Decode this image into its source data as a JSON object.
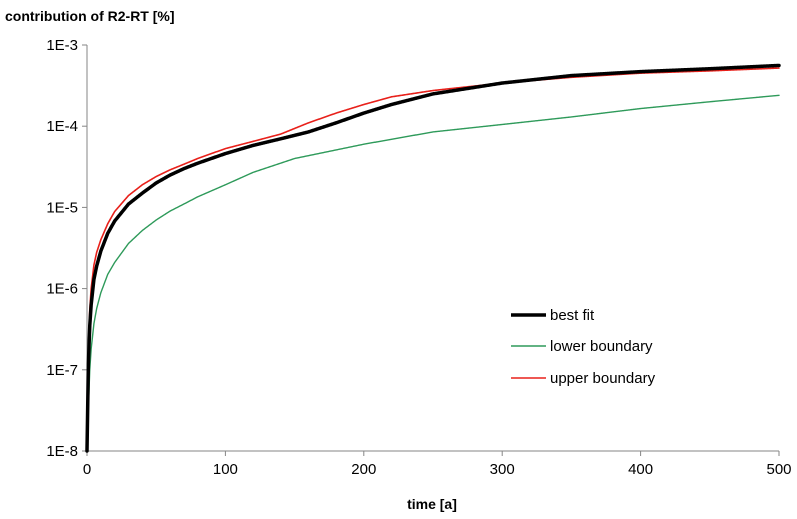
{
  "chart_data": {
    "type": "line",
    "title": "",
    "ylabel": "contribution of R2-RT [%]",
    "xlabel": "time [a]",
    "y_scale": "log",
    "xlim": [
      0,
      500
    ],
    "ylim": [
      1e-08,
      0.001
    ],
    "x_ticks": [
      "0",
      "100",
      "200",
      "300",
      "400",
      "500"
    ],
    "y_ticks": [
      "1E-8",
      "1E-7",
      "1E-6",
      "1E-5",
      "1E-4",
      "1E-3"
    ],
    "grid": false,
    "legend_position": "bottom-right",
    "series": [
      {
        "name": "best fit",
        "color": "#000000",
        "x": [
          0,
          1,
          2,
          3,
          5,
          7,
          10,
          15,
          20,
          30,
          40,
          50,
          60,
          70,
          80,
          100,
          120,
          140,
          160,
          180,
          200,
          220,
          250,
          300,
          350,
          400,
          450,
          500
        ],
        "y": [
          1e-08,
          1.2e-07,
          3.5e-07,
          6.3e-07,
          1.3e-06,
          1.9e-06,
          2.9e-06,
          4.8e-06,
          6.8e-06,
          1.1e-05,
          1.5e-05,
          2e-05,
          2.5e-05,
          3e-05,
          3.5e-05,
          4.6e-05,
          5.8e-05,
          7e-05,
          8.5e-05,
          0.00011,
          0.000145,
          0.000185,
          0.00025,
          0.00034,
          0.00042,
          0.00047,
          0.00051,
          0.00056
        ]
      },
      {
        "name": "lower boundary",
        "color": "#2e9a5a",
        "x": [
          0,
          1,
          2,
          3,
          5,
          7,
          10,
          15,
          20,
          30,
          40,
          50,
          60,
          70,
          80,
          100,
          120,
          150,
          200,
          250,
          300,
          350,
          400,
          450,
          500
        ],
        "y": [
          1e-08,
          3.5e-08,
          1e-07,
          1.8e-07,
          3.7e-07,
          5.7e-07,
          8.9e-07,
          1.5e-06,
          2.1e-06,
          3.6e-06,
          5.2e-06,
          7e-06,
          9e-06,
          1.1e-05,
          1.35e-05,
          1.9e-05,
          2.7e-05,
          4e-05,
          6e-05,
          8.5e-05,
          0.000105,
          0.00013,
          0.000165,
          0.0002,
          0.00024
        ]
      },
      {
        "name": "upper boundary",
        "color": "#e8201a",
        "x": [
          0,
          1,
          2,
          3,
          5,
          7,
          10,
          15,
          20,
          30,
          40,
          50,
          60,
          70,
          80,
          100,
          120,
          140,
          160,
          180,
          200,
          220,
          250,
          300,
          350,
          400,
          450,
          500
        ],
        "y": [
          1e-08,
          1.8e-07,
          5.5e-07,
          1e-06,
          1.95e-06,
          2.8e-06,
          4e-06,
          6.3e-06,
          8.9e-06,
          1.4e-05,
          1.9e-05,
          2.4e-05,
          2.9e-05,
          3.4e-05,
          4e-05,
          5.3e-05,
          6.5e-05,
          8e-05,
          0.00011,
          0.000145,
          0.000185,
          0.00023,
          0.000275,
          0.00034,
          0.0004,
          0.00045,
          0.00048,
          0.00052
        ]
      }
    ]
  }
}
